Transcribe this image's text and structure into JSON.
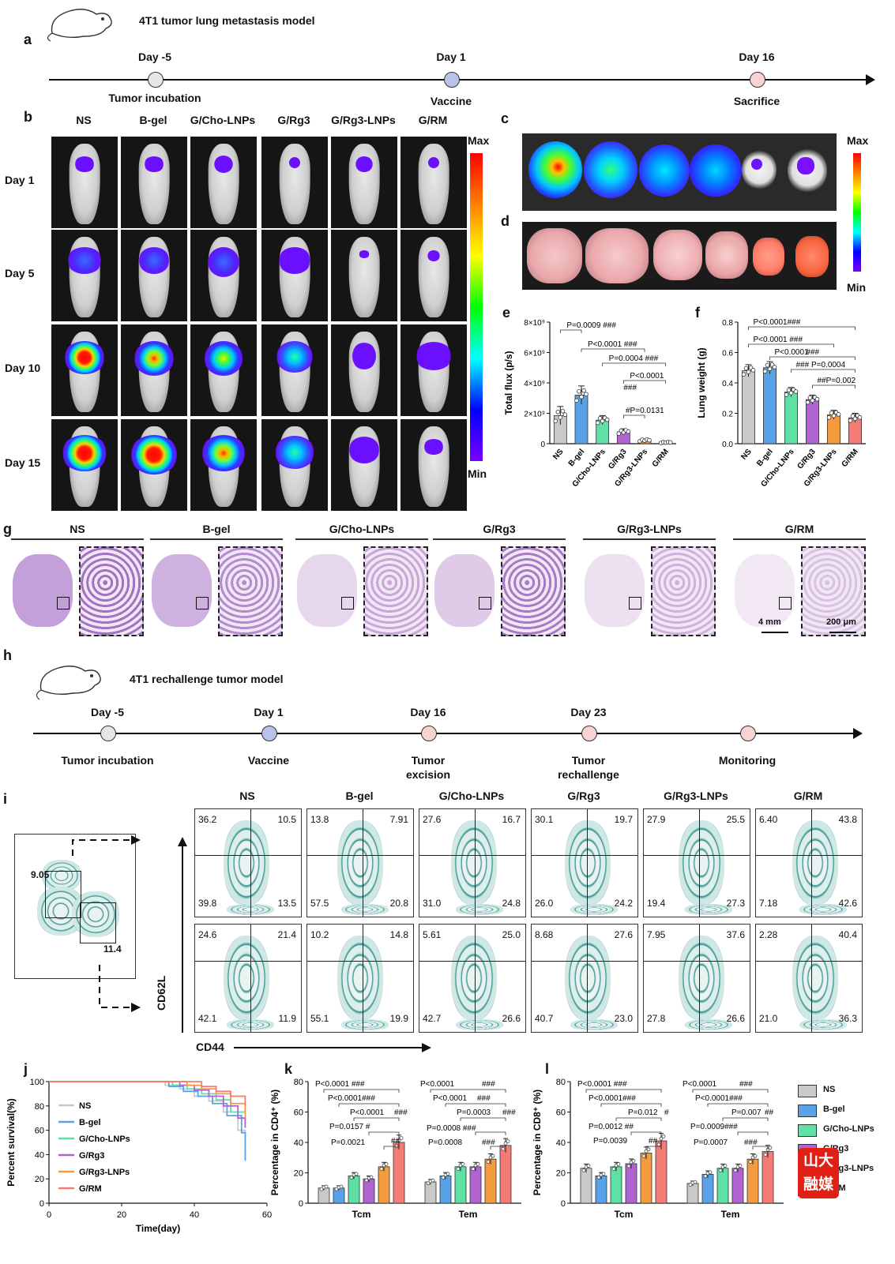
{
  "panel_a": {
    "label": "a",
    "title": "4T1 tumor lung metastasis model",
    "events": [
      {
        "day": "Day -5",
        "desc": "Tumor incubation",
        "color": "#e6e6e6"
      },
      {
        "day": "Day 1",
        "desc": "Vaccine",
        "color": "#b7c3ea"
      },
      {
        "day": "Day 16",
        "desc": "Sacrifice",
        "color": "#f7d4d2"
      }
    ]
  },
  "panel_b": {
    "label": "b",
    "groups": [
      "NS",
      "B-gel",
      "G/Cho-LNPs",
      "G/Rg3",
      "G/Rg3-LNPs",
      "G/RM"
    ],
    "days": [
      "Day 1",
      "Day 5",
      "Day 10",
      "Day 15"
    ],
    "scale_max": "Max",
    "scale_min": "Min"
  },
  "panel_c": {
    "label": "c",
    "scale_max": "Max",
    "scale_min": "Min"
  },
  "panel_d": {
    "label": "d"
  },
  "colors": {
    "NS": "#c9c9c9",
    "B-gel": "#5aa2e8",
    "G/Cho-LNPs": "#5fe0a4",
    "G/Rg3": "#b064d0",
    "G/Rg3-LNPs": "#f39b3d",
    "G/RM": "#f47c74",
    "teal": "#1f7f76"
  },
  "chart_data": [
    {
      "id": "e",
      "type": "bar",
      "label": "e",
      "ylabel": "Total flux (p/s)",
      "categories": [
        "NS",
        "B-gel",
        "G/Cho-LNPs",
        "G/Rg3",
        "G/Rg3-LNPs",
        "G/RM"
      ],
      "values": [
        1.85,
        3.2,
        1.55,
        0.78,
        0.22,
        0.08
      ],
      "errors": [
        0.6,
        0.6,
        0.3,
        0.2,
        0.1,
        0.05
      ],
      "ylim": [
        0,
        8
      ],
      "yticks": [
        "0",
        "2×10⁹",
        "4×10⁹",
        "6×10⁹",
        "8×10⁹"
      ],
      "annotations": [
        "P=0.0009 ###",
        "P<0.0001 ###",
        "P=0.0004 ###",
        "P<0.0001",
        "###",
        "#P=0.0131"
      ]
    },
    {
      "id": "f",
      "type": "bar",
      "label": "f",
      "ylabel": "Lung weight (g)",
      "categories": [
        "NS",
        "B-gel",
        "G/Cho-LNPs",
        "G/Rg3",
        "G/Rg3-LNPs",
        "G/RM"
      ],
      "values": [
        0.48,
        0.5,
        0.34,
        0.29,
        0.19,
        0.17
      ],
      "errors": [
        0.04,
        0.04,
        0.03,
        0.03,
        0.03,
        0.03
      ],
      "ylim": [
        0,
        0.8
      ],
      "yticks": [
        "0.0",
        "0.2",
        "0.4",
        "0.6",
        "0.8"
      ],
      "annotations": [
        "P<0.0001###",
        "P<0.0001",
        "###",
        "P<0.0001",
        "###",
        "### P=0.0004",
        "##P=0.002"
      ]
    },
    {
      "id": "j",
      "type": "line",
      "label": "j",
      "xlabel": "Time(day)",
      "ylabel": "Percent survival(%)",
      "xlim": [
        0,
        60
      ],
      "ylim": [
        0,
        100
      ],
      "xticks": [
        "0",
        "20",
        "40",
        "60"
      ],
      "yticks": [
        "0",
        "20",
        "40",
        "60",
        "80",
        "100"
      ],
      "series": [
        {
          "name": "NS",
          "x": [
            0,
            32,
            36,
            40,
            44,
            48,
            52,
            54
          ],
          "y": [
            100,
            97,
            94,
            88,
            84,
            75,
            60,
            35
          ]
        },
        {
          "name": "B-gel",
          "x": [
            0,
            33,
            37,
            41,
            45,
            49,
            53,
            54
          ],
          "y": [
            100,
            96,
            92,
            88,
            82,
            72,
            58,
            35
          ]
        },
        {
          "name": "G/Cho-LNPs",
          "x": [
            0,
            34,
            38,
            42,
            46,
            50,
            54
          ],
          "y": [
            100,
            97,
            94,
            90,
            85,
            75,
            65
          ]
        },
        {
          "name": "G/Rg3",
          "x": [
            0,
            36,
            40,
            44,
            48,
            52,
            54
          ],
          "y": [
            100,
            97,
            93,
            88,
            80,
            70,
            62
          ]
        },
        {
          "name": "G/Rg3-LNPs",
          "x": [
            0,
            38,
            42,
            46,
            50,
            54
          ],
          "y": [
            100,
            97,
            94,
            90,
            82,
            70
          ]
        },
        {
          "name": "G/RM",
          "x": [
            0,
            42,
            46,
            50,
            54
          ],
          "y": [
            100,
            96,
            92,
            88,
            80
          ]
        }
      ]
    },
    {
      "id": "k",
      "type": "bar",
      "label": "k",
      "ylabel": "Percentage in CD4⁺ (%)",
      "categories": [
        "Tcm",
        "Tem"
      ],
      "series": [
        {
          "name": "NS",
          "values": [
            10,
            14
          ]
        },
        {
          "name": "B-gel",
          "values": [
            10,
            18
          ]
        },
        {
          "name": "G/Cho-LNPs",
          "values": [
            18,
            24
          ]
        },
        {
          "name": "G/Rg3",
          "values": [
            16,
            24
          ]
        },
        {
          "name": "G/Rg3-LNPs",
          "values": [
            24,
            29
          ]
        },
        {
          "name": "G/RM",
          "values": [
            40,
            38
          ]
        }
      ],
      "ylim": [
        0,
        80
      ],
      "yticks": [
        "0",
        "20",
        "40",
        "60",
        "80"
      ],
      "annotations_tcm": [
        "P<0.0001 ###",
        "P<0.0001###",
        "P<0.0001",
        "###",
        "P=0.0157 #",
        "P=0.0021",
        "##"
      ],
      "annotations_tem": [
        "P<0.0001",
        "###",
        "P<0.0001",
        "###",
        "P=0.0003",
        "###",
        "P=0.0008 ###",
        "P=0.0008",
        "###"
      ]
    },
    {
      "id": "l",
      "type": "bar",
      "label": "l",
      "ylabel": "Percentage in CD8⁺ (%)",
      "categories": [
        "Tcm",
        "Tem"
      ],
      "series": [
        {
          "name": "NS",
          "values": [
            23,
            13
          ]
        },
        {
          "name": "B-gel",
          "values": [
            18,
            19
          ]
        },
        {
          "name": "G/Cho-LNPs",
          "values": [
            24,
            23
          ]
        },
        {
          "name": "G/Rg3",
          "values": [
            26,
            23
          ]
        },
        {
          "name": "G/Rg3-LNPs",
          "values": [
            33,
            29
          ]
        },
        {
          "name": "G/RM",
          "values": [
            41,
            34
          ]
        }
      ],
      "ylim": [
        0,
        80
      ],
      "yticks": [
        "0",
        "20",
        "40",
        "60",
        "80"
      ],
      "annotations_tcm": [
        "P<0.0001 ###",
        "P<0.0001###",
        "P=0.012",
        "#",
        "P=0.0012 ##",
        "P=0.0039",
        "##"
      ],
      "annotations_tem": [
        "P<0.0001",
        "###",
        "P<0.0001###",
        "P=0.007",
        "##",
        "P=0.0009###",
        "P=0.0007",
        "###"
      ]
    }
  ],
  "panel_g": {
    "label": "g",
    "groups": [
      "NS",
      "B-gel",
      "G/Cho-LNPs",
      "G/Rg3",
      "G/Rg3-LNPs",
      "G/RM"
    ],
    "scale1": "4 mm",
    "scale2": "200 μm"
  },
  "panel_h": {
    "label": "h",
    "title": "4T1 rechallenge tumor model",
    "events": [
      {
        "day": "Day -5",
        "desc": "Tumor incubation",
        "desc2": "",
        "color": "#e6e6e6"
      },
      {
        "day": "Day 1",
        "desc": "Vaccine",
        "desc2": "",
        "color": "#b7c3ea"
      },
      {
        "day": "Day 16",
        "desc": "Tumor",
        "desc2": "excision",
        "color": "#f7d4d2"
      },
      {
        "day": "Day 23",
        "desc": "Tumor",
        "desc2": "rechallenge",
        "color": "#f7d4d2"
      },
      {
        "day": "",
        "desc": "Monitoring",
        "desc2": "",
        "color": "#f7d4d2"
      }
    ]
  },
  "panel_i": {
    "label": "i",
    "gate_top": "9.05",
    "gate_bottom": "11.4",
    "xaxis": "CD44",
    "yaxis": "CD62L",
    "groups": [
      "NS",
      "B-gel",
      "G/Cho-LNPs",
      "G/Rg3",
      "G/Rg3-LNPs",
      "G/RM"
    ],
    "row1": [
      [
        "36.2",
        "10.5",
        "39.8",
        "13.5"
      ],
      [
        "13.8",
        "7.91",
        "57.5",
        "20.8"
      ],
      [
        "27.6",
        "16.7",
        "31.0",
        "24.8"
      ],
      [
        "30.1",
        "19.7",
        "26.0",
        "24.2"
      ],
      [
        "27.9",
        "25.5",
        "19.4",
        "27.3"
      ],
      [
        "6.40",
        "43.8",
        "7.18",
        "42.6"
      ]
    ],
    "row2": [
      [
        "24.6",
        "21.4",
        "42.1",
        "11.9"
      ],
      [
        "10.2",
        "14.8",
        "55.1",
        "19.9"
      ],
      [
        "5.61",
        "25.0",
        "42.7",
        "26.6"
      ],
      [
        "8.68",
        "27.6",
        "40.7",
        "23.0"
      ],
      [
        "7.95",
        "37.6",
        "27.8",
        "26.6"
      ],
      [
        "2.28",
        "40.4",
        "21.0",
        "36.3"
      ]
    ]
  },
  "legend": [
    "NS",
    "B-gel",
    "G/Cho-LNPs",
    "G/Rg3",
    "G/Rg3-LNPs",
    "G/RM"
  ],
  "watermark": "山大融媒"
}
